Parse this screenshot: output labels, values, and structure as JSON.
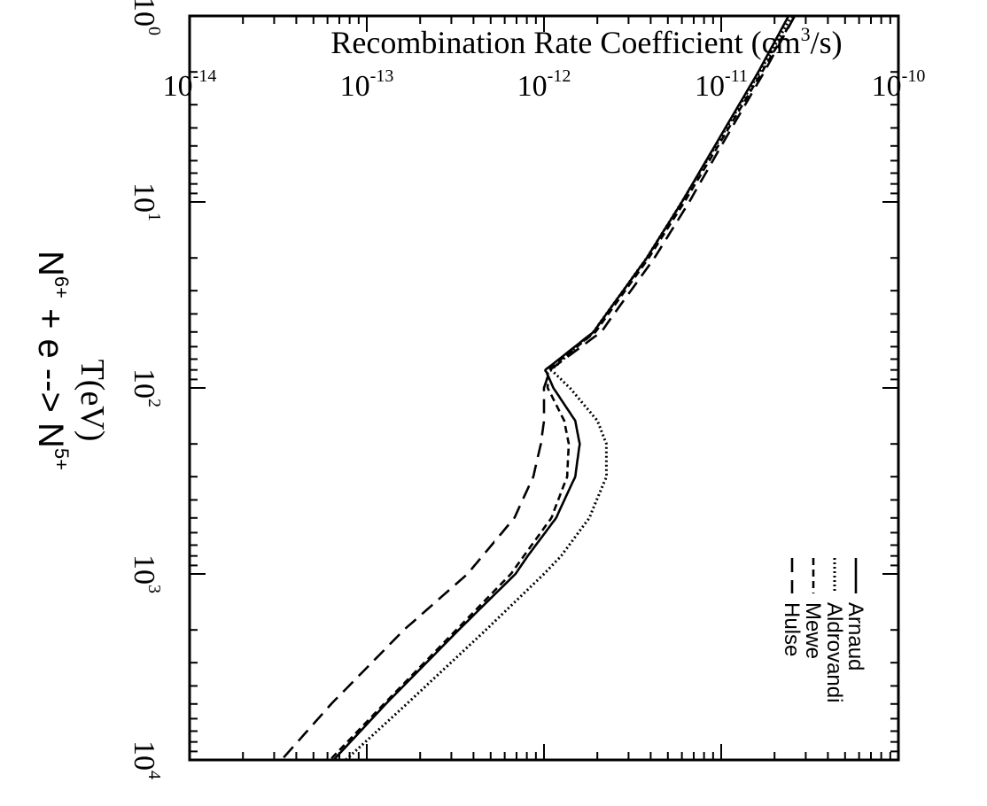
{
  "chart_data": {
    "type": "line",
    "title_base": "N",
    "title_sup1": "6+",
    "title_mid": " + e --> N",
    "title_sup2": "5+",
    "xlabel": "T(eV)",
    "ylabel_pre": "Recombination Rate Coefficient (cm",
    "ylabel_sup": "3",
    "ylabel_post": "/s)",
    "x_scale": "log",
    "y_scale": "log",
    "xlim": [
      1,
      10000
    ],
    "ylim": [
      1e-14,
      1e-10
    ],
    "x_ticks": [
      {
        "base": "10",
        "exp": "0",
        "value": 1
      },
      {
        "base": "10",
        "exp": "1",
        "value": 10
      },
      {
        "base": "10",
        "exp": "2",
        "value": 100
      },
      {
        "base": "10",
        "exp": "3",
        "value": 1000
      },
      {
        "base": "10",
        "exp": "4",
        "value": 10000
      }
    ],
    "y_ticks": [
      {
        "base": "10",
        "exp": "-10",
        "value": 1e-10
      },
      {
        "base": "10",
        "exp": "-11",
        "value": 1e-11
      },
      {
        "base": "10",
        "exp": "-12",
        "value": 1e-12
      },
      {
        "base": "10",
        "exp": "-13",
        "value": 1e-13
      },
      {
        "base": "10",
        "exp": "-14",
        "value": 1e-14
      }
    ],
    "legend_position": "top-right",
    "grid": false,
    "series": [
      {
        "name": "Arnaud",
        "style": "solid",
        "x": [
          1,
          2,
          5,
          10,
          20,
          50,
          80,
          100,
          150,
          200,
          300,
          500,
          800,
          1000,
          2000,
          5000,
          10000
        ],
        "y": [
          2.4e-11,
          1.62e-11,
          9.2e-12,
          6e-12,
          3.8e-12,
          1.9e-12,
          1.02e-12,
          1.13e-12,
          1.5e-12,
          1.59e-12,
          1.5e-12,
          1.17e-12,
          8.1e-13,
          6.9e-13,
          3.3e-13,
          1.28e-13,
          6.5e-14
        ]
      },
      {
        "name": "Aldrovandi",
        "style": "dotted",
        "x": [
          1,
          2,
          5,
          10,
          20,
          50,
          80,
          100,
          150,
          200,
          300,
          500,
          800,
          1000,
          2000,
          5000,
          10000
        ],
        "y": [
          2.5e-11,
          1.65e-11,
          9.3e-12,
          6e-12,
          3.8e-12,
          1.9e-12,
          1.1e-12,
          1.4e-12,
          2e-12,
          2.25e-12,
          2.25e-12,
          1.8e-12,
          1.25e-12,
          1e-12,
          4.7e-13,
          1.68e-13,
          7.6e-14
        ]
      },
      {
        "name": "Mewe",
        "style": "short-dash",
        "x": [
          1,
          2,
          5,
          10,
          20,
          50,
          80,
          100,
          150,
          200,
          300,
          500,
          800,
          1000,
          2000,
          5000,
          10000
        ],
        "y": [
          2.6e-11,
          1.7e-11,
          9.6e-12,
          6.2e-12,
          3.9e-12,
          1.95e-12,
          1.05e-12,
          1.05e-12,
          1.3e-12,
          1.38e-12,
          1.35e-12,
          1.1e-12,
          7.7e-13,
          6.5e-13,
          3.2e-13,
          1.25e-13,
          6.2e-14
        ]
      },
      {
        "name": "Hulse",
        "style": "long-dash",
        "x": [
          1,
          2,
          5,
          10,
          20,
          50,
          80,
          100,
          150,
          200,
          300,
          500,
          800,
          1000,
          2000,
          5000,
          10000
        ],
        "y": [
          2.6e-11,
          1.75e-11,
          1e-11,
          6.6e-12,
          4.2e-12,
          2.1e-12,
          1.08e-12,
          1e-12,
          1e-12,
          9.6e-13,
          8.7e-13,
          6.8e-13,
          4.5e-13,
          3.7e-13,
          1.62e-13,
          6.3e-14,
          3.3e-14
        ]
      }
    ]
  }
}
